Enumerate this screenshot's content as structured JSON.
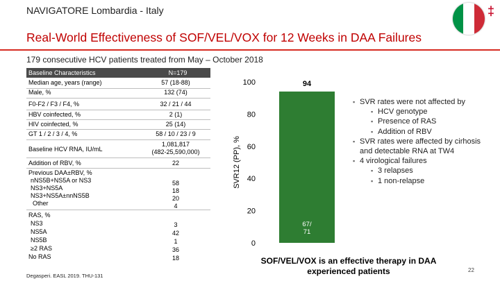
{
  "header": {
    "org_title": "NAVIGATORE Lombardia - Italy",
    "dagger": "‡",
    "flag_colors": [
      "#009246",
      "#ffffff",
      "#ce2b37"
    ]
  },
  "slide": {
    "title": "Real-World Effectiveness of SOF/VEL/VOX for 12 Weeks in DAA Failures",
    "subtitle": "179 consecutive HCV patients treated from May – October 2018",
    "footnote": "Degasperi. EASL 2019. THU-131",
    "page_number": "22",
    "conclusion_line1": "SOF/VEL/VOX is an effective therapy in DAA",
    "conclusion_line2": "experienced patients"
  },
  "table": {
    "header": {
      "label": "Baseline Characteristics",
      "value": "N=179"
    },
    "rows": [
      {
        "label": "Median age, years (range)",
        "value": "57 (18-88)"
      },
      {
        "label": "Male, %",
        "value": "132 (74)"
      },
      {
        "label": "F0-F2 / F3 / F4, %",
        "value": "32 / 21 / 44"
      },
      {
        "label": "HBV coinfected, %",
        "value": "2 (1)"
      },
      {
        "label": "HIV coinfected, %",
        "value": "25 (14)"
      },
      {
        "label": "GT 1 / 2 / 3 / 4, %",
        "value": "58 / 10 / 23 / 9"
      },
      {
        "label": "Baseline HCV RNA, IU/mL",
        "value_line1": "1,081,817",
        "value_line2": "(482-25,590,000)"
      },
      {
        "label": "Addition of RBV, %",
        "value": "22"
      },
      {
        "label": "Previous DAA±RBV, %",
        "sub": [
          {
            "label": "nNS5B+NS5A or NS3",
            "value": "58"
          },
          {
            "label": "NS3+NS5A",
            "value": "18"
          },
          {
            "label": "NS3+NS5A±nnNS5B",
            "value": "20"
          },
          {
            "label": "Other",
            "value": "4"
          }
        ]
      },
      {
        "label": "RAS, %",
        "sub": [
          {
            "label": "NS3",
            "value": "3"
          },
          {
            "label": "NS5A",
            "value": "42"
          },
          {
            "label": "NS5B",
            "value": "1"
          },
          {
            "label": "≥2 RAS",
            "value": "36"
          },
          {
            "label": "No RAS",
            "value": "18"
          }
        ]
      }
    ]
  },
  "bullets": [
    {
      "text": "SVR rates were not affected by",
      "sub": [
        "HCV genotype",
        "Presence of RAS",
        "Addition of RBV"
      ]
    },
    {
      "text": "SVR rates were affected by cirhosis and detectable RNA at TW4",
      "sub": []
    },
    {
      "text": "4 virological failures",
      "sub": [
        "3 relapses",
        "1 non-relapse"
      ]
    }
  ],
  "chart_data": {
    "type": "bar",
    "categories": [
      ""
    ],
    "values": [
      94
    ],
    "data_labels": [
      "94"
    ],
    "bar_inner_label": [
      "67/",
      "71"
    ],
    "ylabel": "SVR12 (PP), %",
    "ylim": [
      0,
      100
    ],
    "yticks": [
      0,
      20,
      40,
      60,
      80,
      100
    ],
    "grid": false,
    "bar_color": "#2e7d32"
  }
}
